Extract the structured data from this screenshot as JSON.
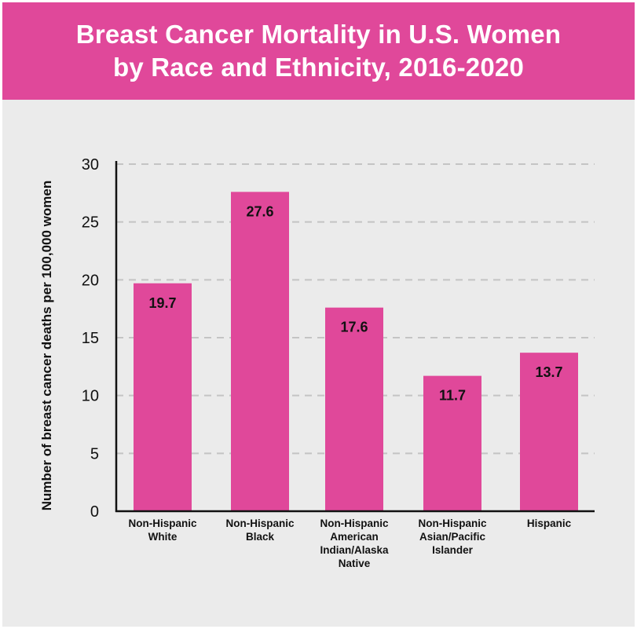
{
  "title": {
    "line1": "Breast Cancer Mortality in U.S. Women",
    "line2": "by Race and Ethnicity, 2016-2020"
  },
  "colors": {
    "header": "#e0489a",
    "bar": "#e0489a",
    "background": "#ebebeb",
    "grid": "#c4c4c4",
    "axis": "#111111"
  },
  "chart_data": {
    "type": "bar",
    "title": "Breast Cancer Mortality in U.S. Women by Race and Ethnicity, 2016-2020",
    "xlabel": "",
    "ylabel": "Number of breast cancer deaths per 100,000 women",
    "ylim": [
      0,
      30
    ],
    "yticks": [
      0,
      5,
      10,
      15,
      20,
      25,
      30
    ],
    "grid": "horizontal-dashed",
    "categories": [
      [
        "Non-Hispanic",
        "White"
      ],
      [
        "Non-Hispanic",
        "Black"
      ],
      [
        "Non-Hispanic",
        "American",
        "Indian/Alaska",
        "Native"
      ],
      [
        "Non-Hispanic",
        "Asian/Pacific",
        "Islander"
      ],
      [
        "Hispanic"
      ]
    ],
    "values": [
      19.7,
      27.6,
      17.6,
      11.7,
      13.7
    ],
    "data_labels": [
      "19.7",
      "27.6",
      "17.6",
      "11.7",
      "13.7"
    ]
  }
}
